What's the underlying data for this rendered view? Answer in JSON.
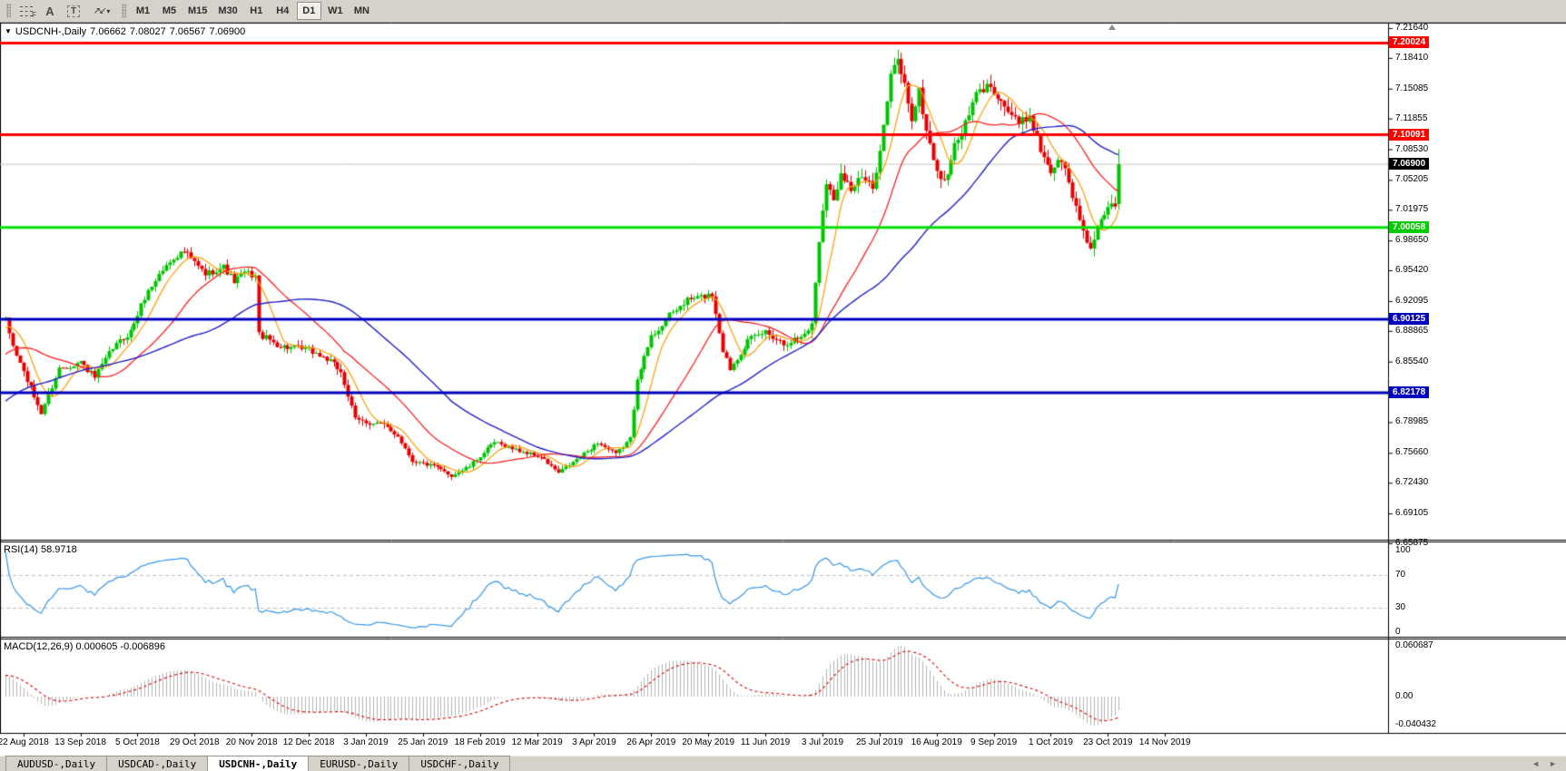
{
  "toolbar": {
    "tools": [
      {
        "name": "fibonacci-tool",
        "glyph": "F"
      },
      {
        "name": "text-tool",
        "glyph": "A"
      },
      {
        "name": "label-tool",
        "glyph": "T"
      },
      {
        "name": "arrows-tool",
        "glyph": "↗↙",
        "caret": "▾"
      }
    ],
    "timeframes": [
      "M1",
      "M5",
      "M15",
      "M30",
      "H1",
      "H4",
      "D1",
      "W1",
      "MN"
    ],
    "active_timeframe": "D1"
  },
  "chart": {
    "dropdown_arrow": "▼",
    "symbol_label": "USDCNH-,Daily",
    "open": "7.06662",
    "high": "7.08027",
    "low": "7.06567",
    "close": "7.06900"
  },
  "price_axis": {
    "ticks": [
      "7.21640",
      "7.18410",
      "7.15085",
      "7.11855",
      "7.08530",
      "7.05205",
      "7.01975",
      "6.98650",
      "6.95420",
      "6.92095",
      "6.88865",
      "6.85540",
      "6.78985",
      "6.75660",
      "6.72430",
      "6.69105",
      "6.65875"
    ],
    "badges": [
      {
        "value": "7.20024",
        "color": "#ff0000"
      },
      {
        "value": "7.10091",
        "color": "#ff0000"
      },
      {
        "value": "7.06900",
        "color": "#000000"
      },
      {
        "value": "7.00058",
        "color": "#00cc00"
      },
      {
        "value": "6.90125",
        "color": "#0000c0"
      },
      {
        "value": "6.82178",
        "color": "#0000c0"
      }
    ]
  },
  "rsi_panel": {
    "label": "RSI(14) 58.9718",
    "axis": [
      "100",
      "70",
      "30",
      "0"
    ]
  },
  "macd_panel": {
    "label": "MACD(12,26,9) 0.000605 -0.006896",
    "axis": [
      "0.060687",
      "0.00",
      "-0.040432"
    ]
  },
  "date_axis": [
    "22 Aug 2018",
    "13 Sep 2018",
    "5 Oct 2018",
    "29 Oct 2018",
    "20 Nov 2018",
    "12 Dec 2018",
    "3 Jan 2019",
    "25 Jan 2019",
    "18 Feb 2019",
    "12 Mar 2019",
    "3 Apr 2019",
    "26 Apr 2019",
    "20 May 2019",
    "11 Jun 2019",
    "3 Jul 2019",
    "25 Jul 2019",
    "16 Aug 2019",
    "9 Sep 2019",
    "1 Oct 2019",
    "23 Oct 2019",
    "14 Nov 2019"
  ],
  "tabs": {
    "items": [
      "AUDUSD-,Daily",
      "USDCAD-,Daily",
      "USDCNH-,Daily",
      "EURUSD-,Daily",
      "USDCHF-,Daily"
    ],
    "active_index": 2,
    "nav_left": "◄",
    "nav_right": "►"
  },
  "chart_data": {
    "type": "candlestick",
    "symbol": "USDCNH",
    "timeframe": "Daily",
    "bars": 313,
    "price_range": {
      "top": 7.2203,
      "bottom": 6.6646
    },
    "up_color": "#00c400",
    "down_color": "#e60000",
    "close_anchors": [
      [
        0,
        6.9
      ],
      [
        2,
        6.872
      ],
      [
        6,
        6.835
      ],
      [
        10,
        6.8
      ],
      [
        15,
        6.848
      ],
      [
        21,
        6.855
      ],
      [
        25,
        6.838
      ],
      [
        30,
        6.87
      ],
      [
        35,
        6.888
      ],
      [
        39,
        6.925
      ],
      [
        43,
        6.95
      ],
      [
        47,
        6.968
      ],
      [
        50,
        6.975
      ],
      [
        56,
        6.95
      ],
      [
        61,
        6.958
      ],
      [
        64,
        6.942
      ],
      [
        67,
        6.952
      ],
      [
        70,
        6.948
      ],
      [
        71,
        6.885
      ],
      [
        77,
        6.872
      ],
      [
        85,
        6.868
      ],
      [
        90,
        6.858
      ],
      [
        94,
        6.845
      ],
      [
        98,
        6.792
      ],
      [
        105,
        6.788
      ],
      [
        110,
        6.775
      ],
      [
        114,
        6.748
      ],
      [
        120,
        6.742
      ],
      [
        125,
        6.732
      ],
      [
        130,
        6.742
      ],
      [
        137,
        6.768
      ],
      [
        143,
        6.76
      ],
      [
        150,
        6.752
      ],
      [
        155,
        6.735
      ],
      [
        161,
        6.752
      ],
      [
        166,
        6.768
      ],
      [
        171,
        6.755
      ],
      [
        175,
        6.772
      ],
      [
        177,
        6.838
      ],
      [
        181,
        6.882
      ],
      [
        186,
        6.905
      ],
      [
        191,
        6.922
      ],
      [
        198,
        6.928
      ],
      [
        201,
        6.868
      ],
      [
        203,
        6.848
      ],
      [
        208,
        6.878
      ],
      [
        213,
        6.888
      ],
      [
        218,
        6.875
      ],
      [
        223,
        6.882
      ],
      [
        226,
        6.895
      ],
      [
        228,
        6.988
      ],
      [
        230,
        7.052
      ],
      [
        232,
        7.028
      ],
      [
        234,
        7.062
      ],
      [
        237,
        7.042
      ],
      [
        240,
        7.055
      ],
      [
        243,
        7.042
      ],
      [
        246,
        7.11
      ],
      [
        248,
        7.165
      ],
      [
        250,
        7.182
      ],
      [
        252,
        7.155
      ],
      [
        254,
        7.118
      ],
      [
        256,
        7.148
      ],
      [
        258,
        7.105
      ],
      [
        261,
        7.062
      ],
      [
        263,
        7.048
      ],
      [
        266,
        7.088
      ],
      [
        269,
        7.112
      ],
      [
        272,
        7.145
      ],
      [
        276,
        7.155
      ],
      [
        280,
        7.132
      ],
      [
        284,
        7.112
      ],
      [
        287,
        7.122
      ],
      [
        290,
        7.085
      ],
      [
        293,
        7.062
      ],
      [
        296,
        7.075
      ],
      [
        298,
        7.048
      ],
      [
        300,
        7.022
      ],
      [
        302,
        6.998
      ],
      [
        304,
        6.978
      ],
      [
        306,
        6.998
      ],
      [
        308,
        7.012
      ],
      [
        310,
        7.028
      ],
      [
        311,
        7.022
      ],
      [
        312,
        7.069
      ]
    ],
    "hlines": [
      {
        "price": 7.069,
        "color": "#c8c8c8",
        "width": 1,
        "behind": true
      },
      {
        "price": 7.20024,
        "color": "#ff0000",
        "width": 3
      },
      {
        "price": 7.10091,
        "color": "#ff0000",
        "width": 3
      },
      {
        "price": 7.00058,
        "color": "#00e000",
        "width": 3
      },
      {
        "price": 6.90125,
        "color": "#0000c0",
        "width": 3
      },
      {
        "price": 6.82178,
        "color": "#0000c0",
        "width": 3
      }
    ],
    "moving_averages": [
      {
        "period": 8,
        "color": "#ff9c00",
        "width": 1.2
      },
      {
        "period": 25,
        "color": "#ff1414",
        "width": 1.2
      },
      {
        "period": 55,
        "color": "#2222cc",
        "width": 1.4
      }
    ],
    "rsi": {
      "period": 14,
      "color": "#3898e8",
      "range": [
        0,
        100
      ],
      "levels": [
        70,
        30
      ],
      "last": 58.9718
    },
    "macd": {
      "fast": 12,
      "slow": 26,
      "signal": 9,
      "range": [
        -0.040432,
        0.060687
      ],
      "hist_color": "#b4b4b4",
      "signal_color": "#e00000",
      "last_main": 0.000605,
      "last_signal": -0.006896
    }
  }
}
